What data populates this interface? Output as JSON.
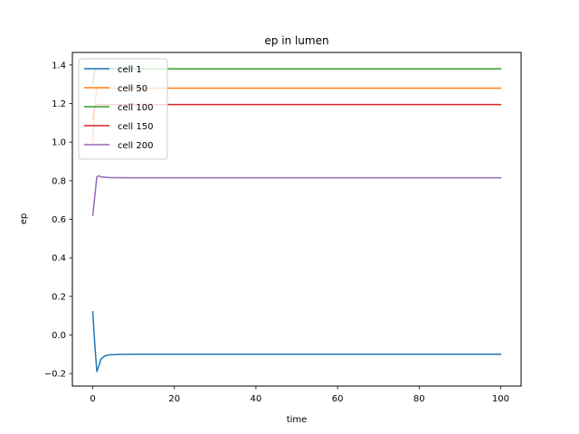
{
  "chart_data": {
    "type": "line",
    "title": "ep in lumen",
    "xlabel": "time",
    "ylabel": "ep",
    "xlim": [
      -5,
      105
    ],
    "ylim": [
      -0.265,
      1.465
    ],
    "xticks": [
      0,
      20,
      40,
      60,
      80,
      100
    ],
    "yticks": [
      -0.2,
      0.0,
      0.2,
      0.4,
      0.6,
      0.8,
      1.0,
      1.2,
      1.4
    ],
    "xtick_labels": [
      "0",
      "20",
      "40",
      "60",
      "80",
      "100"
    ],
    "ytick_labels": [
      "−0.2",
      "0.0",
      "0.2",
      "0.4",
      "0.6",
      "0.8",
      "1.0",
      "1.2",
      "1.4"
    ],
    "grid": false,
    "legend_position": "upper left",
    "series": [
      {
        "name": "cell 1",
        "color": "#1f77b4",
        "x": [
          0,
          0.5,
          1,
          1.5,
          2,
          3,
          4,
          6,
          10,
          20,
          40,
          60,
          80,
          100
        ],
        "y": [
          0.12,
          -0.05,
          -0.19,
          -0.16,
          -0.125,
          -0.108,
          -0.103,
          -0.101,
          -0.1,
          -0.1,
          -0.1,
          -0.1,
          -0.1,
          -0.1
        ]
      },
      {
        "name": "cell 50",
        "color": "#ff7f0e",
        "x": [
          0,
          0.5,
          1,
          2,
          100
        ],
        "y": [
          1.0,
          1.2,
          1.28,
          1.28,
          1.28
        ]
      },
      {
        "name": "cell 100",
        "color": "#2ca02c",
        "x": [
          0,
          0.5,
          1,
          2,
          100
        ],
        "y": [
          1.3,
          1.37,
          1.38,
          1.38,
          1.38
        ]
      },
      {
        "name": "cell 150",
        "color": "#d62728",
        "x": [
          0,
          0.5,
          1,
          2,
          100
        ],
        "y": [
          1.12,
          1.18,
          1.195,
          1.195,
          1.195
        ]
      },
      {
        "name": "cell 200",
        "color": "#9467bd",
        "x": [
          0,
          0.5,
          1,
          1.5,
          2,
          4,
          10,
          100
        ],
        "y": [
          0.62,
          0.72,
          0.82,
          0.825,
          0.82,
          0.816,
          0.815,
          0.815
        ]
      }
    ]
  }
}
